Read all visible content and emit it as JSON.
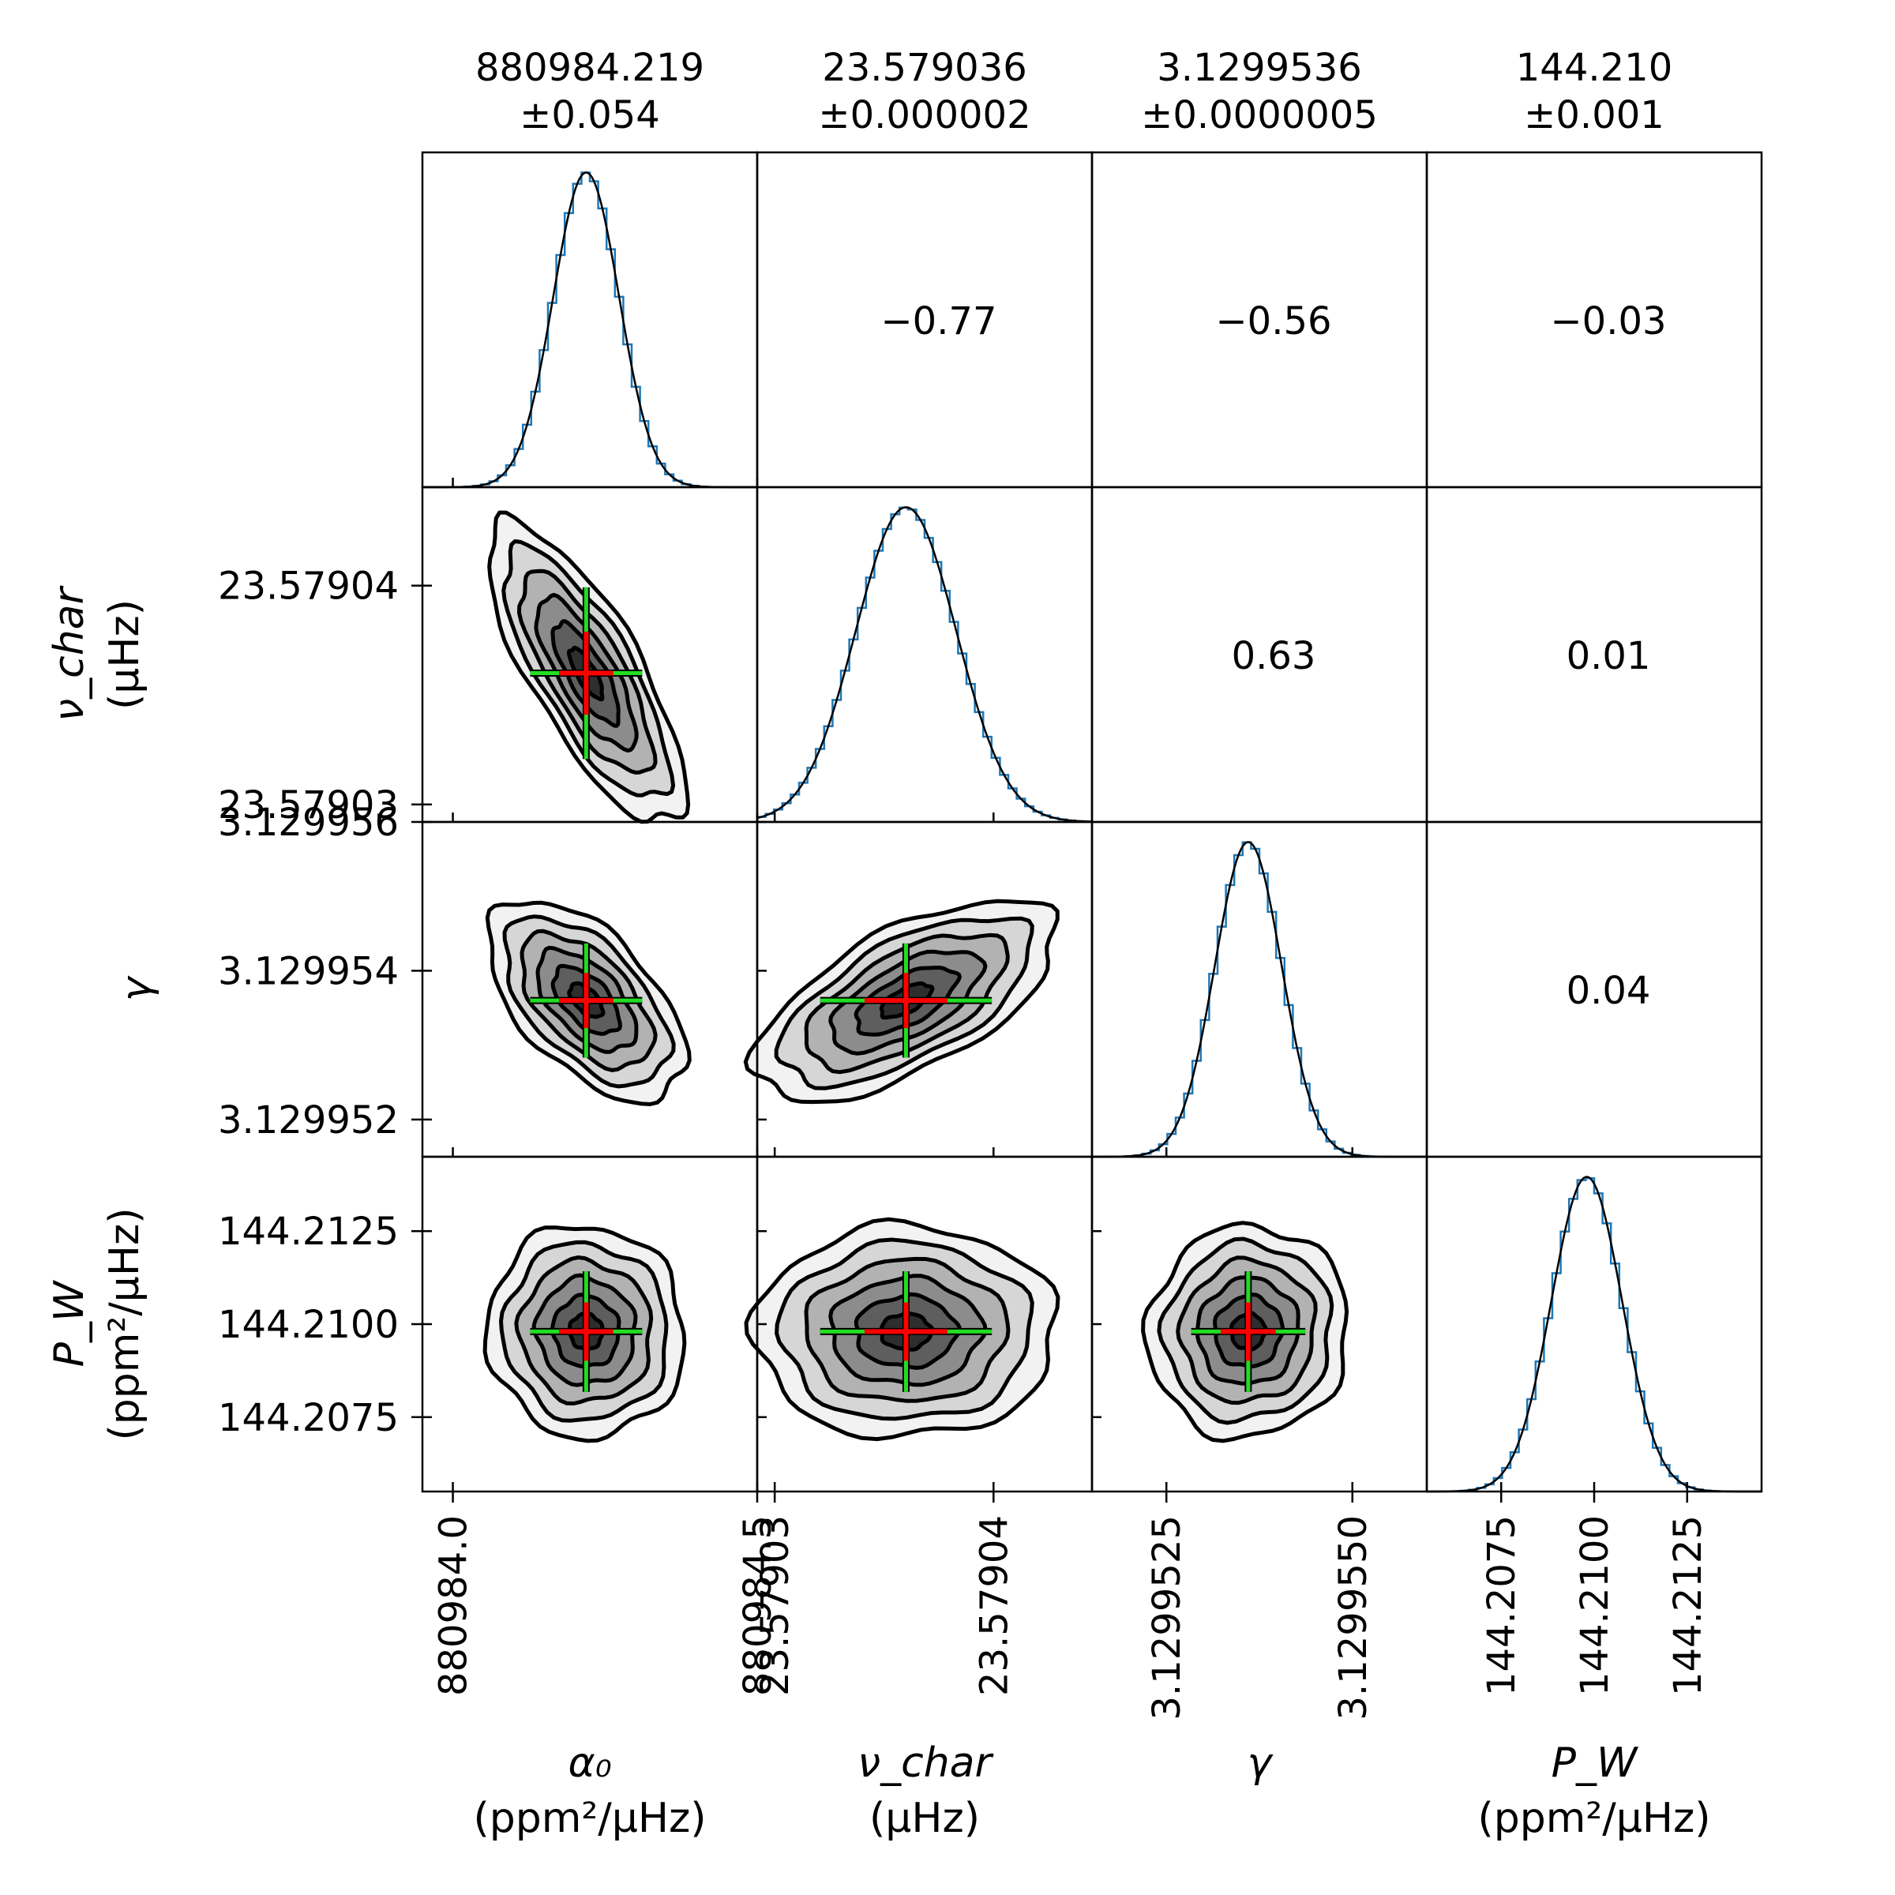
{
  "colors": {
    "hist": "#1f77b4",
    "curve": "#000000",
    "levels": [
      "#f2f2f2",
      "#d6d6d6",
      "#b2b2b2",
      "#8c8c8c",
      "#5e5e5e",
      "#2e2e2e"
    ],
    "error_bar_1sigma": "#ff0000",
    "error_bar_range": "#22dd22"
  },
  "chart_data": {
    "type": "corner",
    "parameters": [
      {
        "id": "alpha0",
        "label": "α₀",
        "unit": "(ppm²/μHz)",
        "summary_value": "880984.219",
        "summary_error": "±0.054",
        "mean": 880984.219,
        "sigma": 0.054,
        "range": [
          880983.95,
          880984.5
        ],
        "ticks": [
          {
            "value": 880984.0,
            "label": "880984.0"
          },
          {
            "value": 880984.5,
            "label": "880984.5"
          }
        ]
      },
      {
        "id": "nu_char",
        "label": "ν_char",
        "unit": "(μHz)",
        "summary_value": "23.579036",
        "summary_error": "±0.000002",
        "mean": 23.579036,
        "sigma": 2.3e-06,
        "range": [
          23.5790292,
          23.5790445
        ],
        "ticks": [
          {
            "value": 23.57903,
            "label": "23.57903"
          },
          {
            "value": 23.57904,
            "label": "23.57904"
          }
        ]
      },
      {
        "id": "gamma",
        "label": "γ",
        "unit": "",
        "summary_value": "3.1299536",
        "summary_error": "±0.0000005",
        "mean": 3.1299536,
        "sigma": 4.5e-07,
        "range": [
          3.1299515,
          3.129956
        ],
        "ticks": [
          {
            "value": 3.1299525,
            "label": "3.1299525"
          },
          {
            "value": 3.129955,
            "label": "3.1299550"
          }
        ],
        "ytick_labels": [
          {
            "value": 3.129952,
            "label": "3.129952"
          },
          {
            "value": 3.129954,
            "label": "3.129954"
          },
          {
            "value": 3.129956,
            "label": "3.129956"
          }
        ]
      },
      {
        "id": "P_W",
        "label": "P_W",
        "unit": "(ppm²/μHz)",
        "summary_value": "144.210",
        "summary_error": "±0.001",
        "mean": 144.2098,
        "sigma": 0.00095,
        "range": [
          144.2055,
          144.2145
        ],
        "ticks": [
          {
            "value": 144.2075,
            "label": "144.2075"
          },
          {
            "value": 144.21,
            "label": "144.2100"
          },
          {
            "value": 144.2125,
            "label": "144.2125"
          }
        ]
      }
    ],
    "correlations": [
      {
        "row": 0,
        "col": 1,
        "value": "−0.77"
      },
      {
        "row": 0,
        "col": 2,
        "value": "−0.56"
      },
      {
        "row": 0,
        "col": 3,
        "value": "−0.03"
      },
      {
        "row": 1,
        "col": 2,
        "value": "0.63"
      },
      {
        "row": 1,
        "col": 3,
        "value": "0.01"
      },
      {
        "row": 2,
        "col": 3,
        "value": "0.04"
      }
    ],
    "contour_correlations": [
      {
        "x": 0,
        "y": 1,
        "rho": -0.77
      },
      {
        "x": 0,
        "y": 2,
        "rho": -0.56
      },
      {
        "x": 1,
        "y": 2,
        "rho": 0.63
      },
      {
        "x": 0,
        "y": 3,
        "rho": -0.03
      },
      {
        "x": 1,
        "y": 3,
        "rho": 0.01
      },
      {
        "x": 2,
        "y": 3,
        "rho": 0.04
      }
    ],
    "contour_levels_sigma": [
      3.0,
      2.5,
      2.0,
      1.5,
      1.0,
      0.5
    ],
    "histogram_bins": 40
  }
}
